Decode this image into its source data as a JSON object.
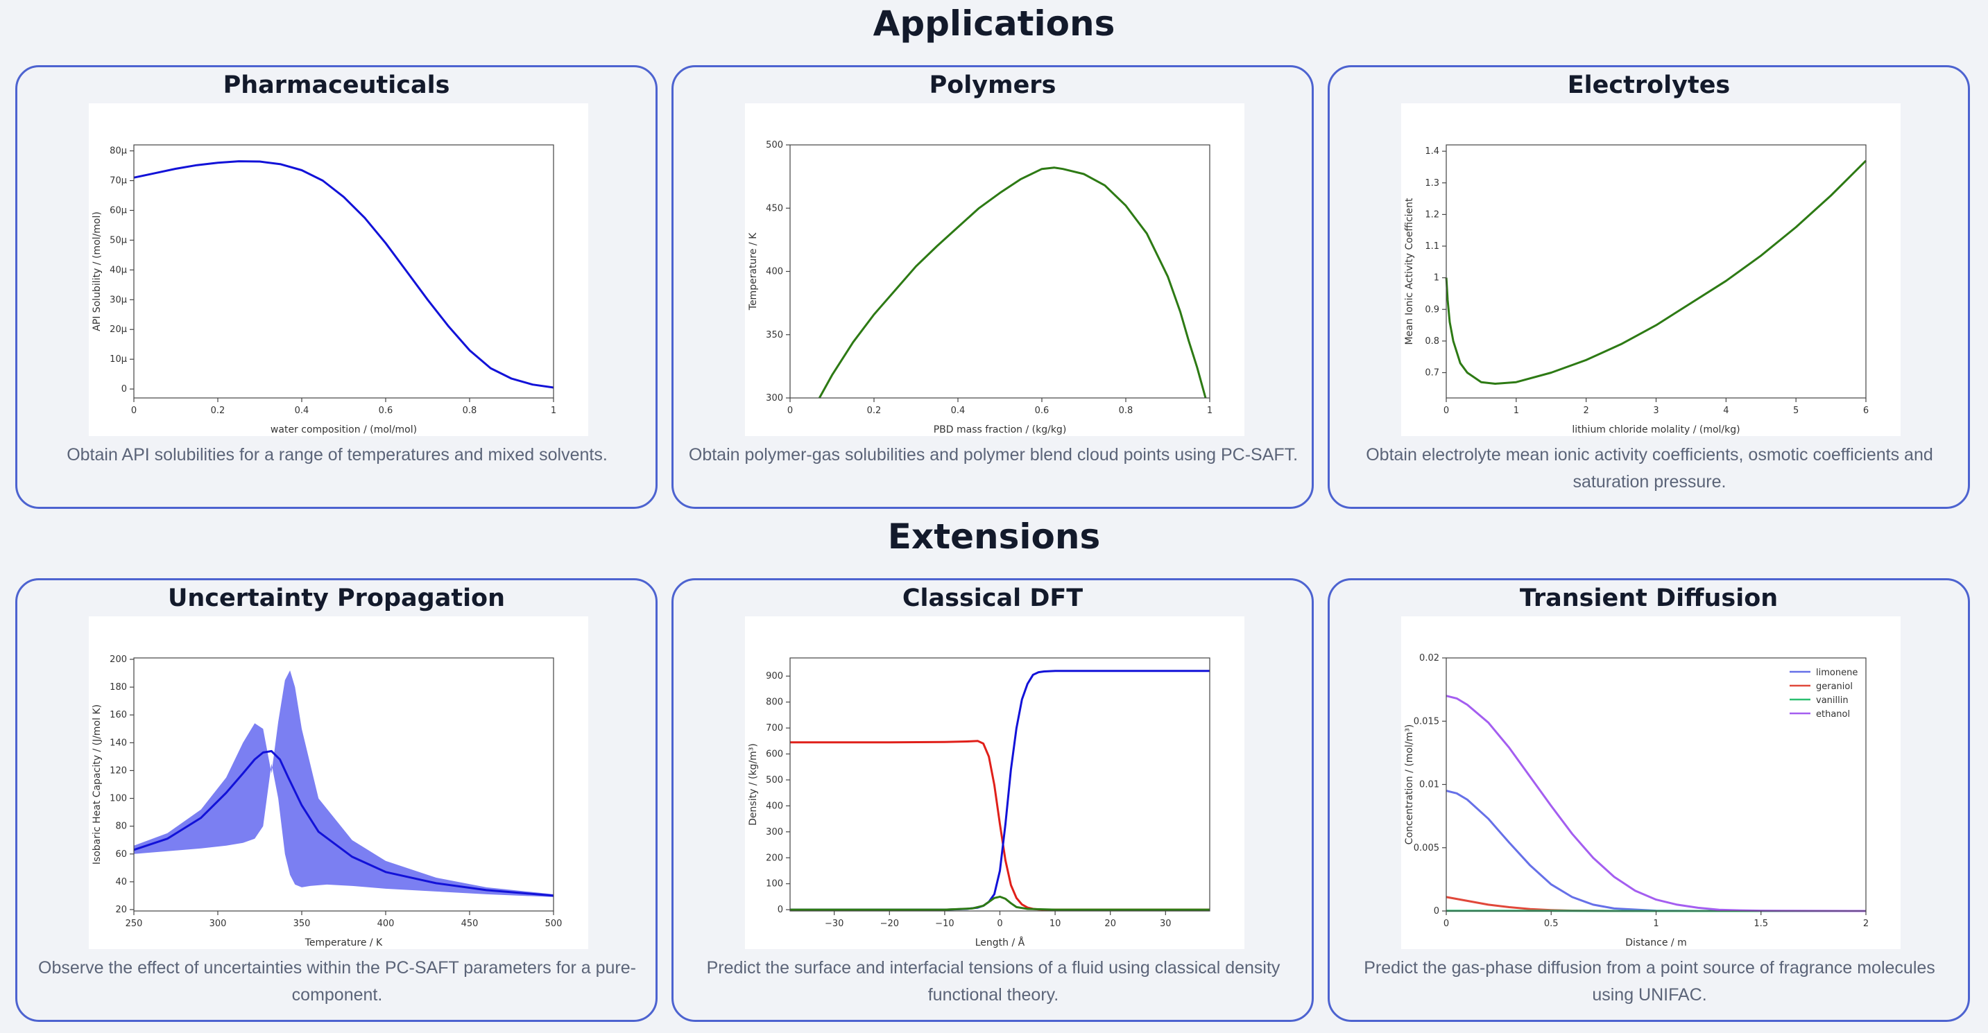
{
  "sections": {
    "applications": "Applications",
    "extensions": "Extensions"
  },
  "colors": {
    "card_border": "#4d63d0",
    "background": "#f1f3f7",
    "blue_line": "#1212d8",
    "green_line": "#2d7a14",
    "red_line": "#e0201a",
    "band": "#7b7ff2"
  },
  "cards": [
    {
      "title": "Pharmaceuticals",
      "description": "Obtain API solubilities for a range of temperatures and mixed solvents."
    },
    {
      "title": "Polymers",
      "description": "Obtain polymer-gas solubilities and polymer blend cloud points using PC-SAFT."
    },
    {
      "title": "Electrolytes",
      "description": "Obtain electrolyte mean ionic activity coefficients, osmotic coefficients and saturation pressure."
    },
    {
      "title": "Uncertainty Propagation",
      "description": "Observe the effect of uncertainties within the PC-SAFT parameters for a pure-component."
    },
    {
      "title": "Classical DFT",
      "description": "Predict the surface and interfacial tensions of a fluid using classical density functional theory."
    },
    {
      "title": "Transient Diffusion",
      "description": "Predict the gas-phase diffusion from a point source of fragrance molecules using UNIFAC."
    }
  ],
  "chart_data": [
    {
      "type": "line",
      "xlabel": "water composition / (mol/mol)",
      "ylabel": "API Solubility / (mol/mol)",
      "xlim": [
        0,
        1
      ],
      "ylim": [
        -3,
        82
      ],
      "xticks": [
        0,
        0.2,
        0.4,
        0.6,
        0.8,
        1
      ],
      "xtick_labels": [
        "0",
        "0.2",
        "0.4",
        "0.6",
        "0.8",
        "1"
      ],
      "yticks": [
        0,
        10,
        20,
        30,
        40,
        50,
        60,
        70,
        80
      ],
      "ytick_labels": [
        "0",
        "10µ",
        "20µ",
        "30µ",
        "40µ",
        "50µ",
        "60µ",
        "70µ",
        "80µ"
      ],
      "series": [
        {
          "color": "#1212d8",
          "x": [
            0,
            0.05,
            0.1,
            0.15,
            0.2,
            0.25,
            0.3,
            0.35,
            0.4,
            0.45,
            0.5,
            0.55,
            0.6,
            0.65,
            0.7,
            0.75,
            0.8,
            0.85,
            0.9,
            0.95,
            1
          ],
          "y": [
            71,
            72.5,
            74,
            75.2,
            76,
            76.5,
            76.4,
            75.5,
            73.5,
            70,
            64.5,
            57.5,
            49,
            39.5,
            30,
            21,
            13,
            7,
            3.5,
            1.5,
            0.5
          ]
        }
      ]
    },
    {
      "type": "line",
      "xlabel": "PBD mass fraction / (kg/kg)",
      "ylabel": "Temperature / K",
      "xlim": [
        0,
        1
      ],
      "ylim": [
        300,
        500
      ],
      "xticks": [
        0,
        0.2,
        0.4,
        0.6,
        0.8,
        1
      ],
      "xtick_labels": [
        "0",
        "0.2",
        "0.4",
        "0.6",
        "0.8",
        "1"
      ],
      "yticks": [
        300,
        350,
        400,
        450,
        500
      ],
      "ytick_labels": [
        "300",
        "350",
        "400",
        "450",
        "500"
      ],
      "series": [
        {
          "color": "#2d7a14",
          "x": [
            0.07,
            0.1,
            0.15,
            0.2,
            0.25,
            0.3,
            0.35,
            0.4,
            0.45,
            0.5,
            0.55,
            0.6,
            0.63,
            0.65,
            0.7,
            0.75,
            0.8,
            0.85,
            0.9,
            0.93,
            0.95,
            0.97,
            0.99
          ],
          "y": [
            300,
            318,
            344,
            366,
            385,
            404,
            420,
            435,
            450,
            462,
            473,
            481,
            482,
            481,
            477,
            468,
            452,
            430,
            396,
            368,
            345,
            324,
            300
          ]
        }
      ]
    },
    {
      "type": "line",
      "xlabel": "lithium chloride molality / (mol/kg)",
      "ylabel": "Mean Ionic Activity Coefficient",
      "xlim": [
        0,
        6
      ],
      "ylim": [
        0.62,
        1.42
      ],
      "xticks": [
        0,
        1,
        2,
        3,
        4,
        5,
        6
      ],
      "xtick_labels": [
        "0",
        "1",
        "2",
        "3",
        "4",
        "5",
        "6"
      ],
      "yticks": [
        0.7,
        0.8,
        0.9,
        1,
        1.1,
        1.2,
        1.3,
        1.4
      ],
      "ytick_labels": [
        "0.7",
        "0.8",
        "0.9",
        "1",
        "1.1",
        "1.2",
        "1.3",
        "1.4"
      ],
      "series": [
        {
          "color": "#2d7a14",
          "x": [
            0.001,
            0.02,
            0.05,
            0.1,
            0.2,
            0.3,
            0.5,
            0.7,
            1,
            1.5,
            2,
            2.5,
            3,
            3.5,
            4,
            4.5,
            5,
            5.5,
            6
          ],
          "y": [
            1.0,
            0.93,
            0.86,
            0.8,
            0.73,
            0.7,
            0.67,
            0.665,
            0.67,
            0.7,
            0.74,
            0.79,
            0.85,
            0.92,
            0.99,
            1.07,
            1.16,
            1.26,
            1.37
          ]
        }
      ]
    },
    {
      "type": "area",
      "xlabel": "Temperature  / K",
      "ylabel": "Isobaric Heat Capacity / (J/mol K)",
      "xlim": [
        250,
        500
      ],
      "ylim": [
        19,
        201
      ],
      "xticks": [
        250,
        300,
        350,
        400,
        450,
        500
      ],
      "xtick_labels": [
        "250",
        "300",
        "350",
        "400",
        "450",
        "500"
      ],
      "yticks": [
        20,
        40,
        60,
        80,
        100,
        120,
        140,
        160,
        180,
        200
      ],
      "ytick_labels": [
        "20",
        "40",
        "60",
        "80",
        "100",
        "120",
        "140",
        "160",
        "180",
        "200"
      ],
      "band": {
        "color": "#7b7ff2",
        "upper_x": [
          250,
          270,
          290,
          305,
          315,
          322,
          327,
          332,
          336,
          340,
          343,
          346,
          350,
          360,
          380,
          400,
          430,
          460,
          500
        ],
        "upper_y": [
          66,
          75,
          92,
          115,
          140,
          154,
          150,
          118,
          155,
          185,
          192,
          180,
          150,
          100,
          70,
          55,
          43,
          36,
          31
        ],
        "lower_x": [
          250,
          270,
          290,
          305,
          315,
          322,
          327,
          332,
          336,
          340,
          343,
          346,
          350,
          355,
          365,
          380,
          400,
          430,
          460,
          500
        ],
        "lower_y": [
          60,
          62,
          64,
          66,
          68,
          71,
          80,
          125,
          100,
          60,
          45,
          38,
          36,
          37,
          38,
          37,
          35,
          33,
          31,
          29
        ]
      },
      "series": [
        {
          "color": "#1212d8",
          "x": [
            250,
            270,
            290,
            305,
            315,
            322,
            327,
            332,
            337,
            342,
            350,
            360,
            380,
            400,
            430,
            460,
            500
          ],
          "y": [
            63,
            71,
            86,
            104,
            118,
            128,
            133,
            134,
            128,
            115,
            95,
            76,
            58,
            47,
            39,
            34,
            30
          ]
        }
      ]
    },
    {
      "type": "line",
      "xlabel": "Length  / Å",
      "ylabel": "Density / (kg/m³)",
      "xlim": [
        -38,
        38
      ],
      "ylim": [
        -5,
        970
      ],
      "xticks": [
        -30,
        -20,
        -10,
        0,
        10,
        20,
        30
      ],
      "xtick_labels": [
        "−30",
        "−20",
        "−10",
        "0",
        "10",
        "20",
        "30"
      ],
      "yticks": [
        0,
        100,
        200,
        300,
        400,
        500,
        600,
        700,
        800,
        900
      ],
      "ytick_labels": [
        "0",
        "100",
        "200",
        "300",
        "400",
        "500",
        "600",
        "700",
        "800",
        "900"
      ],
      "series": [
        {
          "color": "#e0201a",
          "x": [
            -38,
            -20,
            -10,
            -6,
            -4,
            -3,
            -2,
            -1,
            0,
            1,
            2,
            3,
            4,
            5,
            6,
            7,
            8,
            10,
            20,
            38
          ],
          "y": [
            645,
            645,
            646,
            648,
            650,
            640,
            590,
            480,
            330,
            190,
            95,
            45,
            20,
            8,
            3,
            1,
            0,
            0,
            0,
            0
          ]
        },
        {
          "color": "#1212d8",
          "x": [
            -38,
            -10,
            -6,
            -4,
            -3,
            -2,
            -1,
            0,
            1,
            2,
            3,
            4,
            5,
            6,
            7,
            8,
            10,
            15,
            38
          ],
          "y": [
            0,
            0,
            3,
            8,
            15,
            30,
            60,
            150,
            330,
            540,
            700,
            810,
            870,
            905,
            915,
            918,
            920,
            920,
            920
          ]
        },
        {
          "color": "#2d7a14",
          "x": [
            -38,
            -10,
            -5,
            -3,
            -2,
            -1,
            0,
            1,
            2,
            3,
            5,
            10,
            38
          ],
          "y": [
            0,
            0,
            5,
            15,
            30,
            45,
            50,
            42,
            25,
            10,
            3,
            0,
            0
          ]
        }
      ]
    },
    {
      "type": "line",
      "xlabel": "Distance  / m",
      "ylabel": "Concentration / (mol/m³)",
      "xlim": [
        0,
        2
      ],
      "ylim": [
        0,
        0.02
      ],
      "xticks": [
        0,
        0.5,
        1,
        1.5,
        2
      ],
      "xtick_labels": [
        "0",
        "0.5",
        "1",
        "1.5",
        "2"
      ],
      "yticks": [
        0,
        0.005,
        0.01,
        0.015,
        0.02
      ],
      "ytick_labels": [
        "0",
        "0.005",
        "0.01",
        "0.015",
        "0.02"
      ],
      "legend": {
        "position": "top-right",
        "entries": [
          "limonene",
          "geraniol",
          "vanillin",
          "ethanol"
        ]
      },
      "series": [
        {
          "name": "limonene",
          "color": "#6670e8",
          "x": [
            0,
            0.05,
            0.1,
            0.2,
            0.3,
            0.4,
            0.5,
            0.6,
            0.7,
            0.8,
            1,
            1.2,
            2
          ],
          "y": [
            0.0095,
            0.0093,
            0.0088,
            0.0073,
            0.0054,
            0.0036,
            0.0021,
            0.0011,
            0.0005,
            0.0002,
            2e-05,
            0,
            0
          ]
        },
        {
          "name": "geraniol",
          "color": "#e0483a",
          "x": [
            0,
            0.1,
            0.2,
            0.3,
            0.4,
            0.5,
            0.6,
            0.8,
            2
          ],
          "y": [
            0.0011,
            0.0008,
            0.0005,
            0.0003,
            0.00015,
            7e-05,
            3e-05,
            0,
            0
          ]
        },
        {
          "name": "vanillin",
          "color": "#2bbf70",
          "x": [
            0,
            0.5,
            1,
            2
          ],
          "y": [
            1e-05,
            1e-05,
            0,
            0
          ]
        },
        {
          "name": "ethanol",
          "color": "#a45ef0",
          "x": [
            0,
            0.05,
            0.1,
            0.2,
            0.3,
            0.4,
            0.5,
            0.6,
            0.7,
            0.8,
            0.9,
            1,
            1.1,
            1.2,
            1.3,
            1.4,
            1.5,
            1.6,
            2
          ],
          "y": [
            0.017,
            0.0168,
            0.0163,
            0.0149,
            0.0129,
            0.0106,
            0.0083,
            0.0061,
            0.0042,
            0.0027,
            0.0016,
            0.0009,
            0.0005,
            0.00025,
            0.0001,
            5e-05,
            2e-05,
            1e-05,
            0
          ]
        }
      ]
    }
  ]
}
